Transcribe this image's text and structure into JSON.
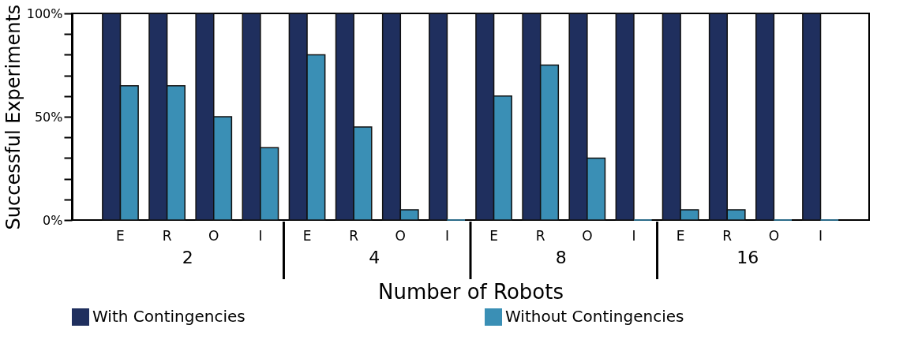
{
  "chart_data": {
    "type": "bar",
    "categories": [
      "E",
      "R",
      "O",
      "I",
      "E",
      "R",
      "O",
      "I",
      "E",
      "R",
      "O",
      "I",
      "E",
      "R",
      "O",
      "I"
    ],
    "series": [
      {
        "name": "With Contingencies",
        "color": "#1f2f5e",
        "values": [
          100,
          100,
          100,
          100,
          100,
          100,
          100,
          100,
          100,
          100,
          100,
          100,
          100,
          100,
          100,
          100
        ]
      },
      {
        "name": "Without Contingencies",
        "color": "#3a8fb5",
        "values": [
          65,
          65,
          50,
          35,
          80,
          45,
          5,
          0,
          60,
          75,
          30,
          0,
          5,
          5,
          0,
          0
        ]
      }
    ],
    "xlabel": "Number of Robots",
    "ylabel": "Successful Experiments",
    "annotations": [
      "2",
      "4",
      "8",
      "16"
    ],
    "ylim": [
      0,
      100
    ],
    "yticks": [
      {
        "value": 0,
        "label": "0%"
      },
      {
        "value": 10,
        "label": null
      },
      {
        "value": 20,
        "label": null
      },
      {
        "value": 30,
        "label": null
      },
      {
        "value": 40,
        "label": null
      },
      {
        "value": 50,
        "label": "50%"
      },
      {
        "value": 60,
        "label": null
      },
      {
        "value": 70,
        "label": null
      },
      {
        "value": 80,
        "label": null
      },
      {
        "value": 90,
        "label": null
      },
      {
        "value": 100,
        "label": "100%"
      }
    ],
    "grid": false,
    "legend": "bottom"
  }
}
